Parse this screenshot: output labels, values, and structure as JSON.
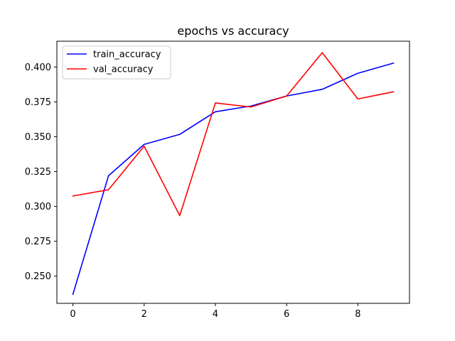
{
  "chart_data": {
    "type": "line",
    "title": "epochs vs accuracy",
    "xlabel": "",
    "ylabel": "",
    "x": [
      0,
      1,
      2,
      3,
      4,
      5,
      6,
      7,
      8,
      9
    ],
    "xlim": [
      -0.45,
      9.45
    ],
    "ylim": [
      0.2305,
      0.4185
    ],
    "xticks": [
      0,
      2,
      4,
      6,
      8
    ],
    "yticks": [
      0.25,
      0.275,
      0.3,
      0.325,
      0.35,
      0.375,
      0.4
    ],
    "xtick_labels": [
      "0",
      "2",
      "4",
      "6",
      "8"
    ],
    "ytick_labels": [
      "0.250",
      "0.275",
      "0.300",
      "0.325",
      "0.350",
      "0.375",
      "0.400"
    ],
    "grid": false,
    "legend_position": "top-left",
    "series": [
      {
        "name": "train_accuracy",
        "color": "#0000ff",
        "values": [
          0.237,
          0.322,
          0.3445,
          0.3517,
          0.3679,
          0.372,
          0.3792,
          0.384,
          0.3955,
          0.4028
        ]
      },
      {
        "name": "val_accuracy",
        "color": "#ff0000",
        "values": [
          0.3075,
          0.312,
          0.3432,
          0.2934,
          0.3742,
          0.3713,
          0.3792,
          0.4103,
          0.3771,
          0.3822
        ]
      }
    ]
  }
}
